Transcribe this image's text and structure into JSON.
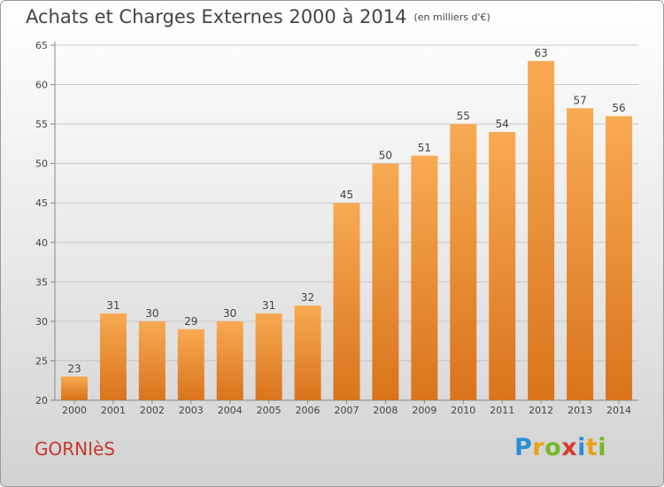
{
  "title": "Achats et Charges Externes 2000 à 2014",
  "unit": "(en milliers d'€)",
  "commune": "GORNIèS",
  "logo": {
    "text": "Proxiti",
    "letters": [
      {
        "ch": "P",
        "color": "#2b8fd6"
      },
      {
        "ch": "r",
        "color": "#e8a215"
      },
      {
        "ch": "o",
        "color": "#77b82a"
      },
      {
        "ch": "x",
        "color": "#d83a2c"
      },
      {
        "ch": "i",
        "color": "#2b8fd6"
      },
      {
        "ch": "t",
        "color": "#e8a215"
      },
      {
        "ch": "i",
        "color": "#77b82a"
      }
    ]
  },
  "chart_data": {
    "type": "bar",
    "title": "Achats et Charges Externes 2000 à 2014",
    "subtitle": "(en milliers d'€)",
    "categories": [
      "2000",
      "2001",
      "2002",
      "2003",
      "2004",
      "2005",
      "2006",
      "2007",
      "2008",
      "2009",
      "2010",
      "2011",
      "2012",
      "2013",
      "2014"
    ],
    "values": [
      23,
      31,
      30,
      29,
      30,
      31,
      32,
      45,
      50,
      51,
      55,
      54,
      63,
      57,
      56
    ],
    "ylim": [
      20,
      65
    ],
    "yticks": [
      20,
      25,
      30,
      35,
      40,
      45,
      50,
      55,
      60,
      65
    ],
    "grid": true,
    "colors": {
      "bar_light": "#f8aa52",
      "bar_dark": "#d9741c",
      "grid": "#c8c8c8",
      "axis": "#888888",
      "text": "#444444"
    }
  }
}
